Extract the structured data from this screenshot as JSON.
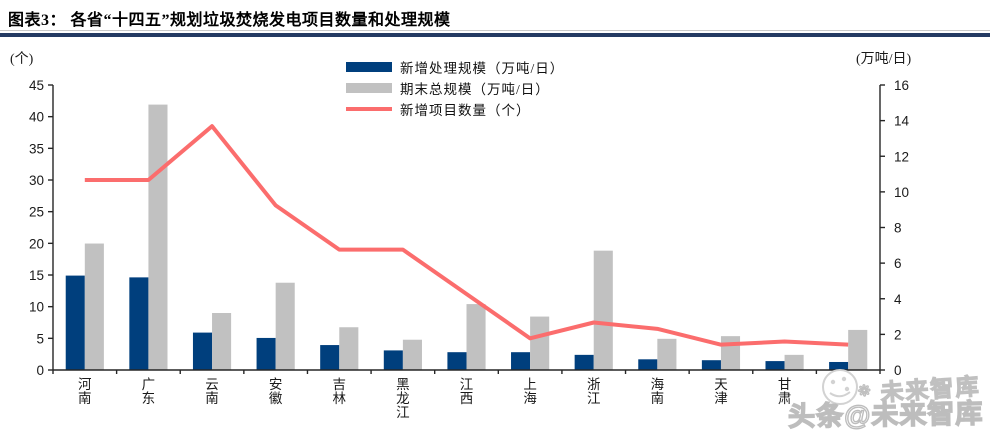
{
  "header": {
    "title": "图表3：  各省“十四五”规划垃圾焚烧发电项目数量和处理规模"
  },
  "chart_data": {
    "type": "combo",
    "title": "各省“十四五”规划垃圾焚烧发电项目数量和处理规模",
    "categories": [
      "河南",
      "广东",
      "云南",
      "安徽",
      "吉林",
      "黑龙江",
      "江西",
      "上海",
      "浙江",
      "海南",
      "天津",
      "甘肃",
      ""
    ],
    "last_category_note": "label hidden behind watermark",
    "series": [
      {
        "name": "新增处理规模（万吨/日）",
        "type": "bar",
        "axis": "right",
        "color": "#003f7d",
        "values": [
          5.3,
          5.2,
          2.1,
          1.8,
          1.4,
          1.1,
          1.0,
          1.0,
          0.85,
          0.6,
          0.55,
          0.5,
          0.45
        ]
      },
      {
        "name": "期末总规模（万吨/日）",
        "type": "bar",
        "axis": "right",
        "color": "#c1c1c1",
        "values": [
          7.1,
          14.9,
          3.2,
          4.9,
          2.4,
          1.7,
          3.7,
          3.0,
          6.7,
          1.75,
          1.9,
          0.85,
          2.25
        ]
      },
      {
        "name": "新增项目数量（个）",
        "type": "line",
        "axis": "left",
        "color": "#fb6d6d",
        "values": [
          30,
          30,
          38.5,
          26,
          19,
          19,
          12,
          5,
          7.5,
          6.5,
          4,
          4.5,
          4
        ]
      }
    ],
    "left_axis": {
      "label": "(个)",
      "min": 0,
      "max": 45,
      "step": 5,
      "ticks": [
        0,
        5,
        10,
        15,
        20,
        25,
        30,
        35,
        40,
        45
      ]
    },
    "right_axis": {
      "label": "(万吨/日)",
      "min": 0,
      "max": 16,
      "step": 2,
      "ticks": [
        0,
        2,
        4,
        6,
        8,
        10,
        12,
        14,
        16
      ]
    },
    "legend_position": "top-center",
    "grid": false
  },
  "watermark": {
    "small": "未来智库",
    "large": "头条@未来智库"
  },
  "colors": {
    "bar_new": "#003f7d",
    "bar_total": "#c1c1c1",
    "line_projects": "#fb6d6d",
    "title_rule": "#243a63",
    "axis": "#262626",
    "watermark_gray": "#c0c0c0"
  }
}
